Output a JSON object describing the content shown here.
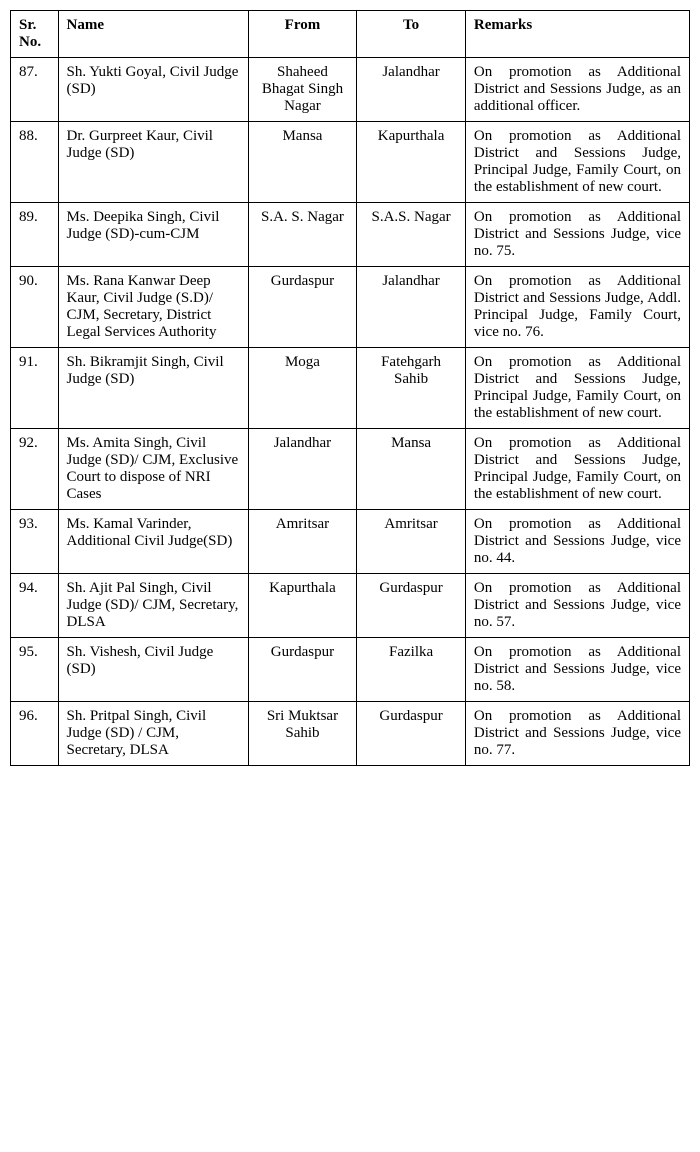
{
  "columns": {
    "sr": "Sr. No.",
    "name": "Name",
    "from": "From",
    "to": "To",
    "remarks": "Remarks"
  },
  "rows": [
    {
      "sr": "87.",
      "name": "Sh. Yukti Goyal, Civil Judge (SD)",
      "from": "Shaheed Bhagat Singh Nagar",
      "to": "Jalandhar",
      "remarks": "On promotion as Additional District and Sessions Judge, as an additional officer."
    },
    {
      "sr": "88.",
      "name": "Dr. Gurpreet Kaur, Civil Judge (SD)",
      "from": "Mansa",
      "to": "Kapurthala",
      "remarks": "On promotion as Additional District and Sessions Judge, Principal Judge, Family Court, on the establishment of new court."
    },
    {
      "sr": "89.",
      "name": "Ms. Deepika Singh, Civil Judge (SD)-cum-CJM",
      "from": "S.A. S. Nagar",
      "to": "S.A.S. Nagar",
      "remarks": "On promotion as Additional District and Sessions Judge, vice no. 75."
    },
    {
      "sr": "90.",
      "name": "Ms. Rana Kanwar Deep Kaur, Civil Judge (S.D)/ CJM, Secretary, District Legal Services Authority",
      "from": "Gurdaspur",
      "to": "Jalandhar",
      "remarks": "On promotion as Additional District and Sessions Judge, Addl. Principal Judge, Family Court, vice no. 76."
    },
    {
      "sr": "91.",
      "name": "Sh. Bikramjit Singh, Civil Judge (SD)",
      "from": "Moga",
      "to": "Fatehgarh Sahib",
      "remarks": "On promotion as Additional District and Sessions Judge, Principal Judge, Family Court, on the establishment of new court."
    },
    {
      "sr": "92.",
      "name": "Ms. Amita Singh, Civil Judge (SD)/ CJM, Exclusive Court to dispose of NRI Cases",
      "from": "Jalandhar",
      "to": "Mansa",
      "remarks": "On promotion as Additional District and Sessions Judge, Principal Judge, Family Court, on the establishment of new court."
    },
    {
      "sr": "93.",
      "name": "Ms.  Kamal Varinder, Additional Civil Judge(SD)",
      "from": "Amritsar",
      "to": "Amritsar",
      "remarks": "On promotion as Additional District and Sessions Judge, vice no. 44."
    },
    {
      "sr": "94.",
      "name": "Sh. Ajit Pal Singh, Civil Judge (SD)/ CJM, Secretary, DLSA",
      "from": "Kapurthala",
      "to": "Gurdaspur",
      "remarks": "On promotion as Additional District and Sessions Judge, vice no. 57."
    },
    {
      "sr": "95.",
      "name": "Sh. Vishesh,  Civil Judge (SD)",
      "from": "Gurdaspur",
      "to": "Fazilka",
      "remarks": "On promotion as Additional District and Sessions Judge, vice no. 58."
    },
    {
      "sr": "96.",
      "name": "Sh. Pritpal Singh, Civil Judge (SD) / CJM, Secretary, DLSA",
      "from": "Sri Muktsar Sahib",
      "to": "Gurdaspur",
      "remarks": "On promotion as Additional District and Sessions Judge, vice no. 77."
    }
  ]
}
